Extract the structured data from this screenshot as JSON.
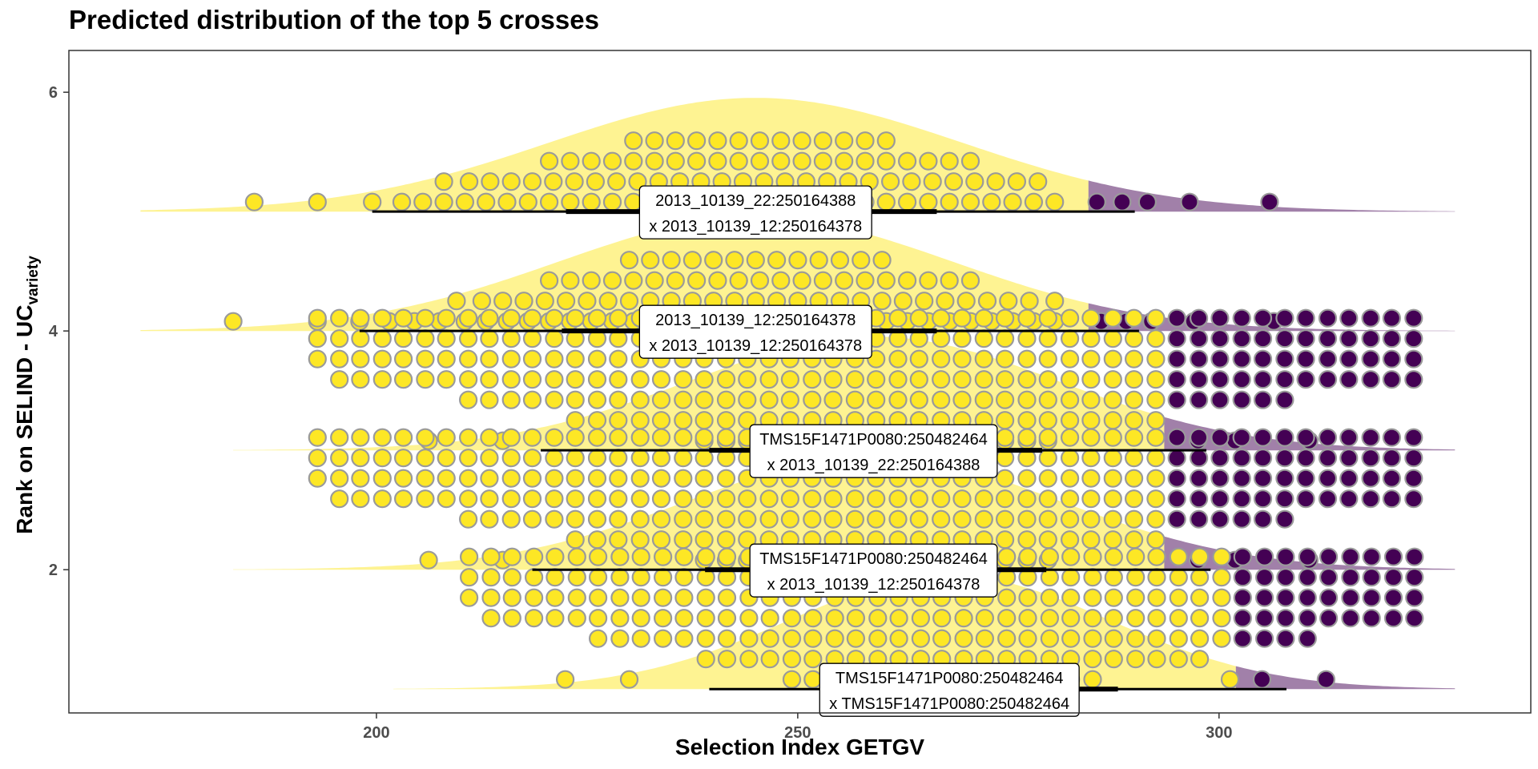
{
  "chart_data": {
    "type": "dotplot-halfeye",
    "title": "Predicted distribution of the top 5 crosses",
    "xlabel": "Selection Index GETGV",
    "ylabel": {
      "main": "Rank on SELIND - UC",
      "sub": "variety"
    },
    "xlim": [
      163.5,
      337
    ],
    "ylim": [
      0.8,
      6.35
    ],
    "x_ticks": [
      200,
      250,
      300
    ],
    "y_ticks": [
      2,
      4,
      6
    ],
    "grid": false,
    "colors": {
      "fill_low": "#fde725",
      "fill_high": "#440154",
      "dot_low": "#fde725",
      "dot_high": "#440154",
      "dot_border": "#9a9a9a"
    },
    "crosses": [
      {
        "rank": 5,
        "label_line1": "2013_10139_22:250164388",
        "label_line2": "x 2013_10139_12:250164378",
        "mean": 245,
        "sd": 24.5,
        "xmin": 172,
        "xmax": 328,
        "threshold": 284.5,
        "interval_95": [
          199.5,
          290
        ],
        "interval_66": [
          222.5,
          266.5
        ],
        "dots": [
          [
            185.5,
            193,
            199.5,
            203,
            205.5,
            208,
            210.5,
            213,
            215.5,
            218,
            220.5,
            223,
            225.5,
            228,
            230.5,
            233,
            235.5,
            238,
            240.5,
            243,
            245.5,
            248,
            250.5,
            253,
            255.5,
            258,
            260.5,
            263,
            265.5,
            268,
            270.5,
            273,
            275.5,
            278,
            280.5,
            285.5,
            288.5,
            291.5,
            296.5,
            306
          ],
          [
            208,
            211,
            213.5,
            216,
            218.5,
            221,
            223.5,
            226,
            228.5,
            231,
            233.5,
            236,
            238.5,
            241,
            243.5,
            246,
            248.5,
            251,
            253.5,
            256,
            258.5,
            261,
            263.5,
            266,
            268.5,
            271,
            273.5,
            276,
            278.5
          ],
          [
            220.5,
            223,
            225.5,
            228,
            230.5,
            233,
            235.5,
            238,
            240.5,
            243,
            245.5,
            248,
            250.5,
            253,
            255.5,
            258,
            260.5,
            263,
            265.5,
            268,
            270.5
          ],
          [
            230.5,
            233,
            235.5,
            238,
            240.5,
            243,
            245.5,
            248,
            250.5,
            253,
            255.5,
            258,
            260.5
          ]
        ]
      },
      {
        "rank": 4,
        "label_line1": "2013_10139_12:250164378",
        "label_line2": "x 2013_10139_12:250164378",
        "mean": 245,
        "sd": 23.5,
        "xmin": 172,
        "xmax": 328,
        "threshold": 284.5,
        "interval_95": [
          198,
          290.5
        ],
        "interval_66": [
          222,
          266.5
        ],
        "dots": [
          [
            183,
            193,
            198,
            201.5,
            204.5,
            207.5,
            210.5,
            213,
            215.5,
            218,
            220.5,
            223,
            225.5,
            228,
            230.5,
            233,
            235.5,
            238,
            240.5,
            243,
            245.5,
            248,
            250.5,
            253,
            255.5,
            258,
            260.5,
            263,
            265.5,
            268,
            270.5,
            273,
            275.5,
            278,
            280.5,
            286,
            289,
            292,
            297,
            306.5
          ],
          [
            209.5,
            212.5,
            215,
            217.5,
            220,
            222.5,
            225,
            227.5,
            230,
            232.5,
            235,
            237.5,
            240,
            242.5,
            245,
            247.5,
            250,
            252.5,
            255,
            257.5,
            260,
            262.5,
            265,
            267.5,
            270,
            272.5,
            275,
            277.5,
            280.5
          ],
          [
            220.5,
            223,
            225.5,
            228,
            230.5,
            233,
            235.5,
            238,
            240.5,
            243,
            245.5,
            248,
            250.5,
            253,
            255.5,
            258,
            260.5,
            263,
            265.5,
            268,
            270.5
          ],
          [
            230,
            232.5,
            235,
            237.5,
            240,
            242.5,
            245,
            247.5,
            250,
            252.5,
            255,
            257.5,
            260
          ]
        ]
      },
      {
        "rank": 3,
        "label_line1": "TMS15F1471P0080:250482464",
        "label_line2": "x 2013_10139_22:250164388",
        "mean": 259,
        "sd": 22,
        "xmin": 183,
        "xmax": 328,
        "threshold": 293.5,
        "interval_95": [
          219.5,
          298.5
        ],
        "interval_66": [
          239.5,
          279
        ]
      },
      {
        "rank": 2,
        "label_line1": "TMS15F1471P0080:250482464",
        "label_line2": "x 2013_10139_12:250164378",
        "mean": 259,
        "sd": 22,
        "xmin": 183,
        "xmax": 328,
        "threshold": 293.5,
        "interval_95": [
          218.5,
          299
        ],
        "interval_66": [
          239,
          279.5
        ]
      },
      {
        "rank": 1,
        "label_line1": "TMS15F1471P0080:250482464",
        "label_line2": "x TMS15F1471P0080:250482464",
        "mean": 268,
        "sd": 19,
        "xmin": 202,
        "xmax": 328,
        "threshold": 302,
        "interval_95": [
          239.5,
          308
        ],
        "interval_66": [
          255,
          288
        ]
      }
    ]
  }
}
